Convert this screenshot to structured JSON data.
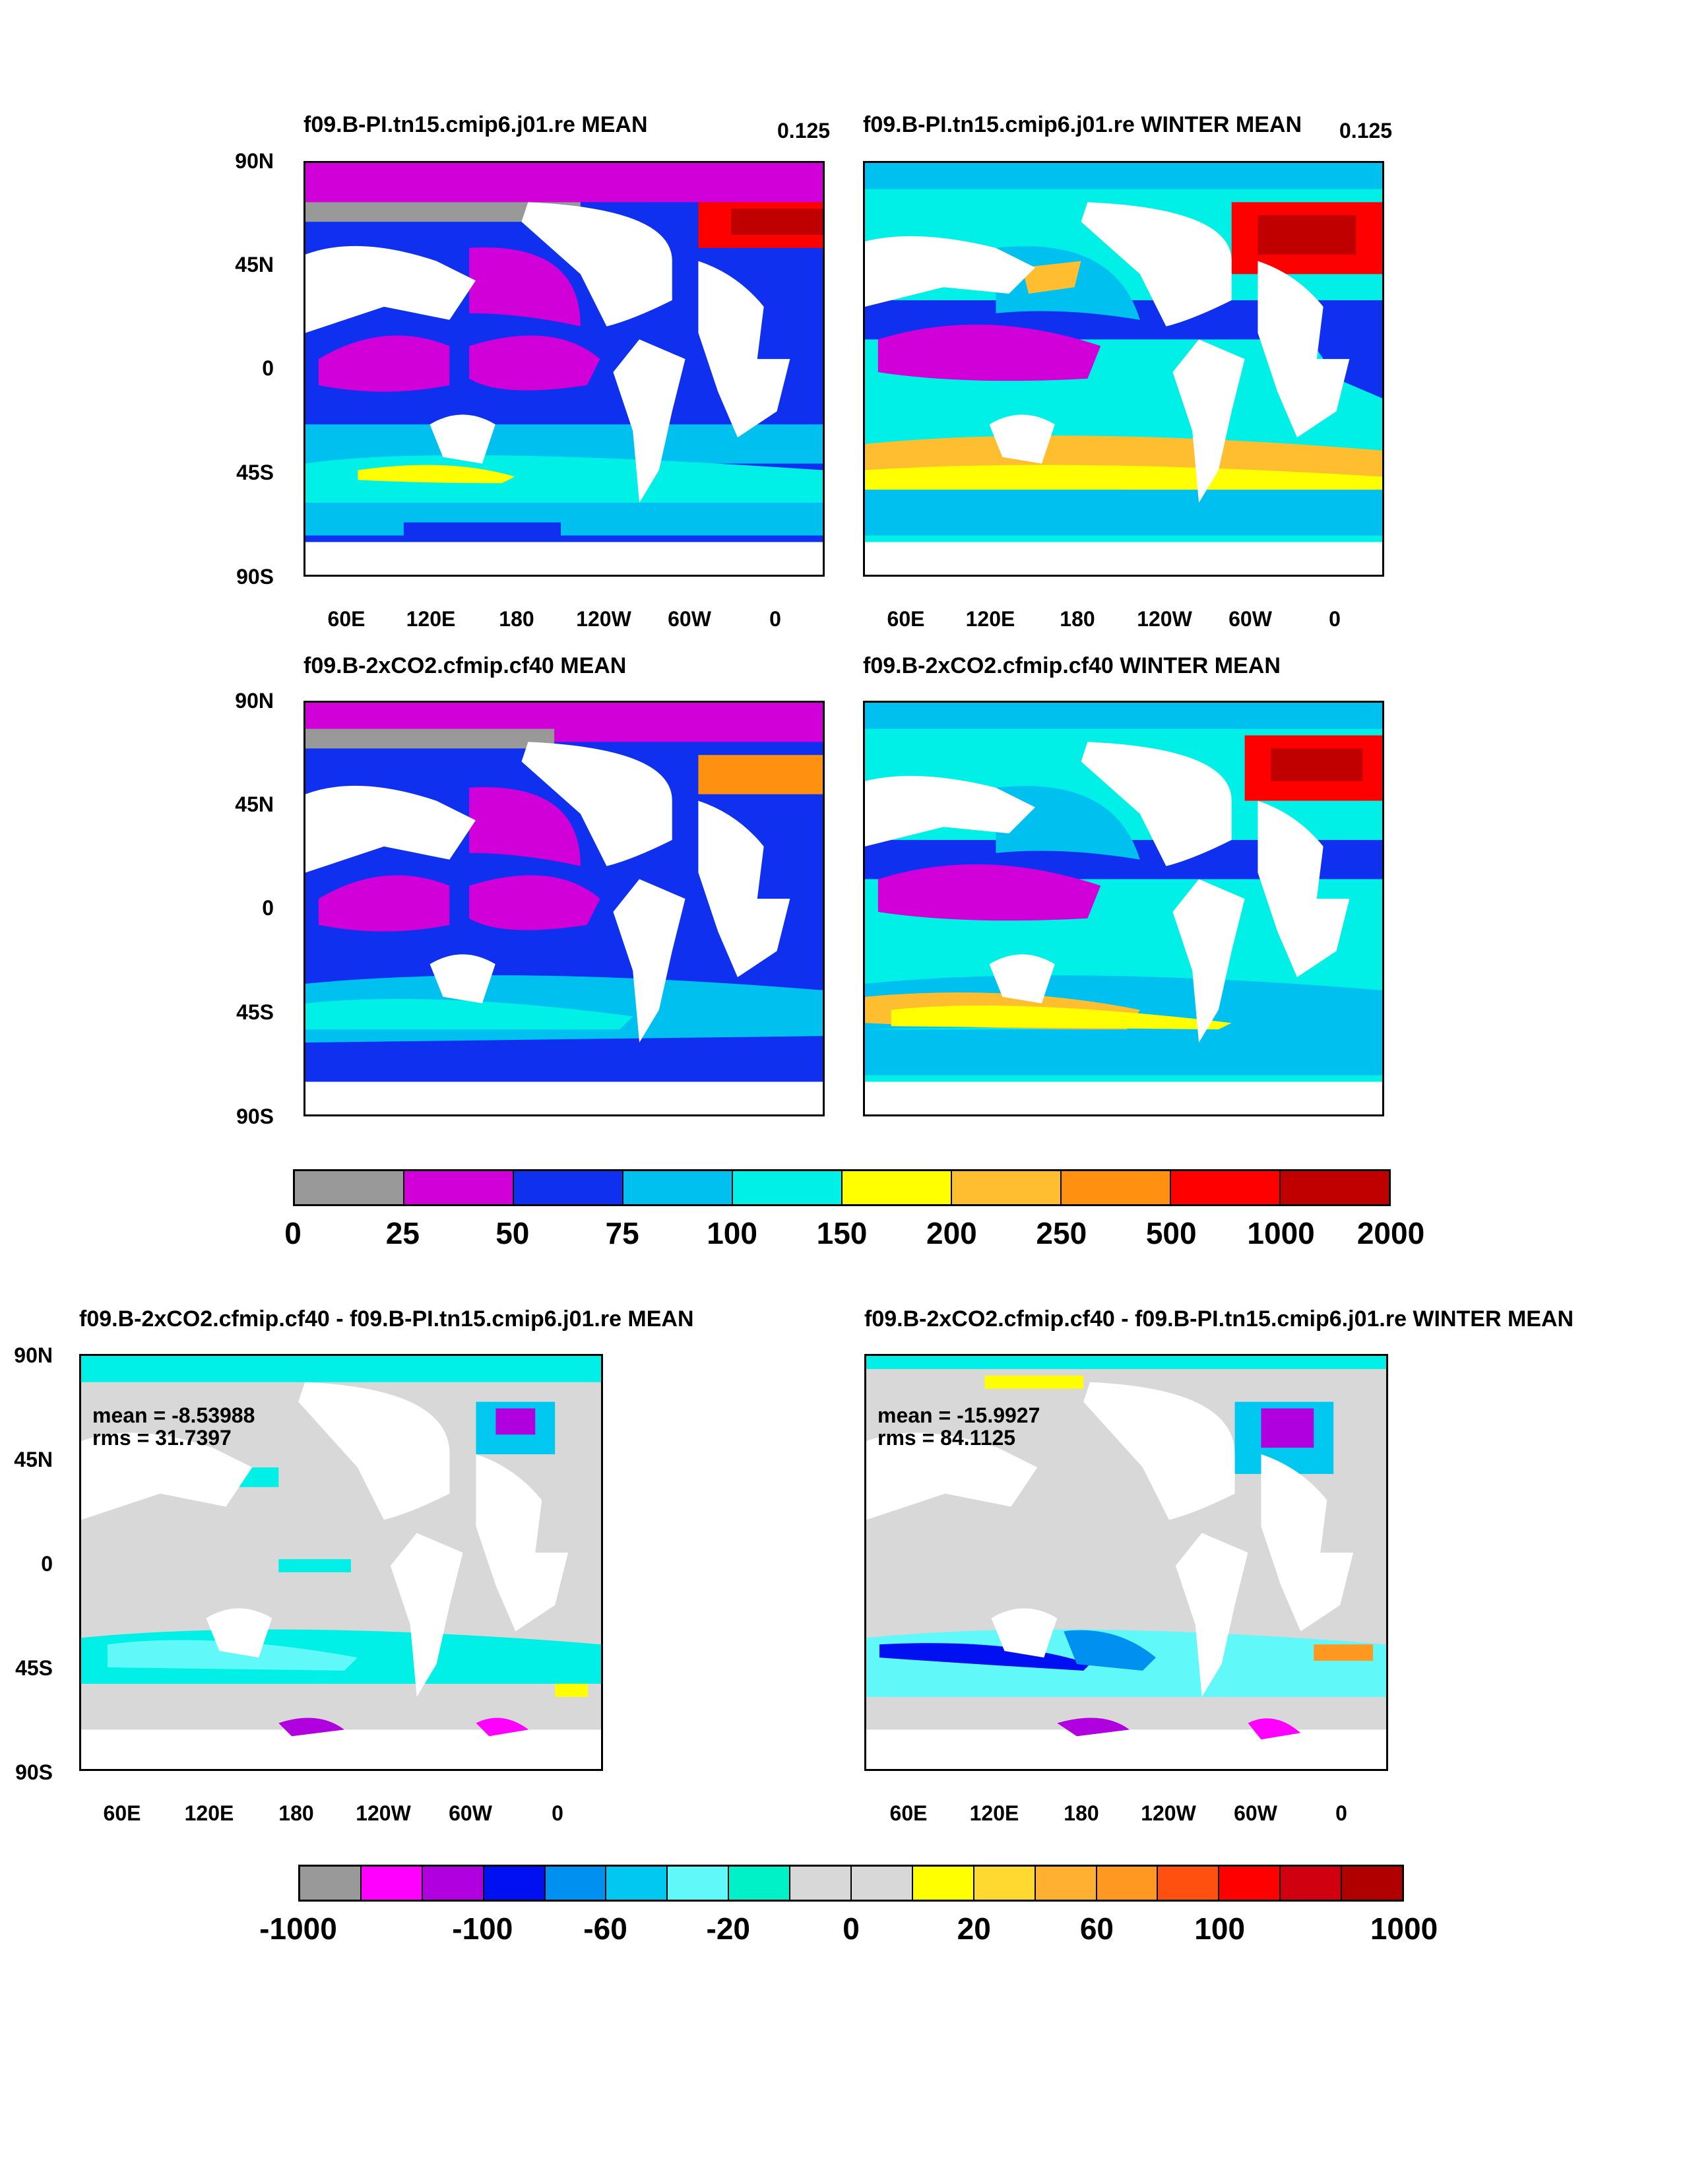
{
  "top_panels": [
    {
      "title": "f09.B-PI.tn15.cmip6.j01.re MEAN",
      "corner": "0.125"
    },
    {
      "title": "f09.B-PI.tn15.cmip6.j01.re WINTER MEAN",
      "corner": "0.125"
    },
    {
      "title": "f09.B-2xCO2.cfmip.cf40 MEAN",
      "corner": ""
    },
    {
      "title": "f09.B-2xCO2.cfmip.cf40 WINTER MEAN",
      "corner": ""
    }
  ],
  "diff_panels": [
    {
      "title": "f09.B-2xCO2.cfmip.cf40 - f09.B-PI.tn15.cmip6.j01.re MEAN",
      "mean": "mean = -8.53988",
      "rms": "rms = 31.7397"
    },
    {
      "title": "f09.B-2xCO2.cfmip.cf40 - f09.B-PI.tn15.cmip6.j01.re WINTER MEAN",
      "mean": "mean = -15.9927",
      "rms": "rms = 84.1125"
    }
  ],
  "lat_labels": [
    "90N",
    "45N",
    "0",
    "45S",
    "90S"
  ],
  "lon_labels": [
    "60E",
    "120E",
    "180",
    "120W",
    "60W",
    "0"
  ],
  "colorbar_main": {
    "colors": [
      "#999999",
      "#d100d9",
      "#1030f0",
      "#00c0f0",
      "#00f0e8",
      "#ffff00",
      "#ffbe30",
      "#ff9010",
      "#ff0000",
      "#c00000"
    ],
    "labels": [
      "0",
      "25",
      "50",
      "75",
      "100",
      "150",
      "200",
      "250",
      "500",
      "1000",
      "2000"
    ]
  },
  "colorbar_diff": {
    "colors": [
      "#999999",
      "#ff00ff",
      "#b000e0",
      "#0010f0",
      "#0090f0",
      "#00c8f0",
      "#60f8f8",
      "#00f0c8",
      "#d8d8d8",
      "#d8d8d8",
      "#ffff00",
      "#ffd830",
      "#ffb030",
      "#ff9820",
      "#ff5010",
      "#ff0000",
      "#d00010",
      "#b00000"
    ],
    "labels": [
      "-1000",
      "-100",
      "-60",
      "-20",
      "0",
      "20",
      "60",
      "100",
      "1000"
    ]
  }
}
